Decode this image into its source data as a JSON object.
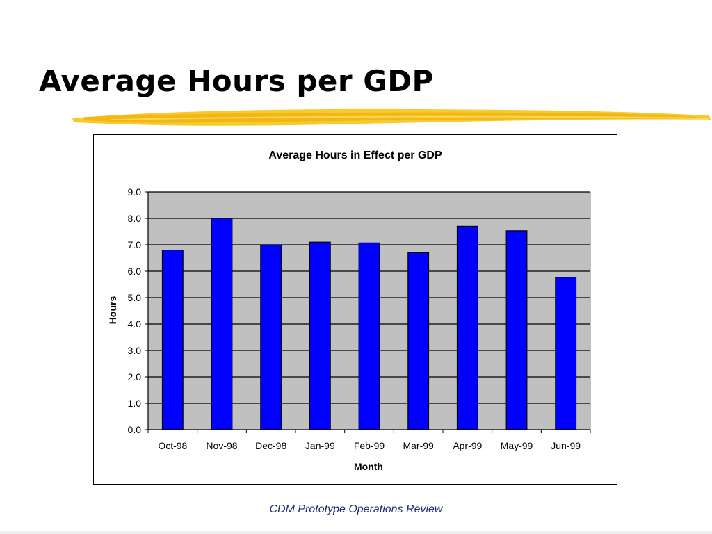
{
  "slide": {
    "title": "Average Hours per GDP",
    "footer": "CDM Prototype Operations Review",
    "accent_color": "#f5c518"
  },
  "chart_data": {
    "type": "bar",
    "title": "Average Hours in Effect per GDP",
    "xlabel": "Month",
    "ylabel": "Hours",
    "categories": [
      "Oct-98",
      "Nov-98",
      "Dec-98",
      "Jan-99",
      "Feb-99",
      "Mar-99",
      "Apr-99",
      "May-99",
      "Jun-99"
    ],
    "values": [
      6.8,
      8.0,
      7.0,
      7.1,
      7.07,
      6.7,
      7.7,
      7.53,
      5.77
    ],
    "ylim": [
      0,
      9
    ],
    "yticks": [
      "0.0",
      "1.0",
      "2.0",
      "3.0",
      "4.0",
      "5.0",
      "6.0",
      "7.0",
      "8.0",
      "9.0"
    ],
    "grid": true,
    "legend": "none",
    "bar_color": "#0000ff",
    "plot_background": "#c0c0c0"
  }
}
